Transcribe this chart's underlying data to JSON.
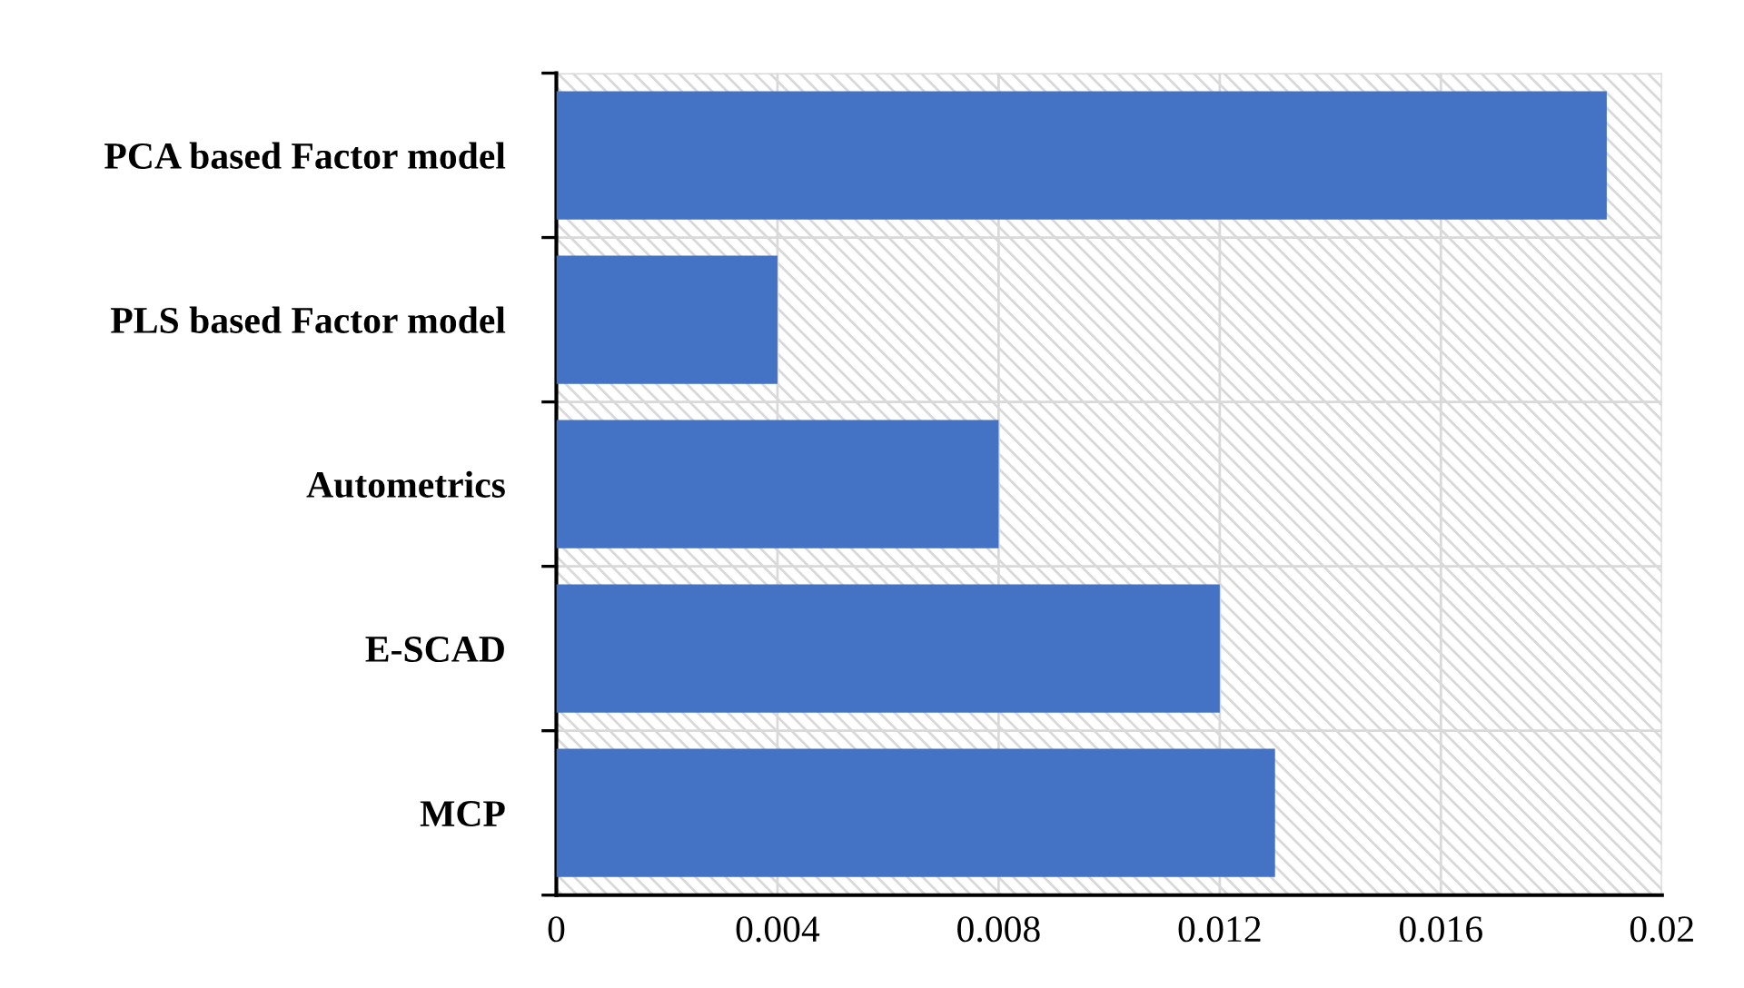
{
  "chart_data": {
    "type": "bar",
    "orientation": "horizontal",
    "categories": [
      "PCA based Factor model",
      "PLS based Factor model",
      "Autometrics",
      "E-SCAD",
      "MCP"
    ],
    "values": [
      0.019,
      0.004,
      0.008,
      0.012,
      0.013
    ],
    "color": "#4472c4",
    "xlim": [
      0,
      0.02
    ],
    "xticks": [
      0,
      0.004,
      0.008,
      0.012,
      0.016,
      0.02
    ],
    "grid": true,
    "legend": false
  }
}
